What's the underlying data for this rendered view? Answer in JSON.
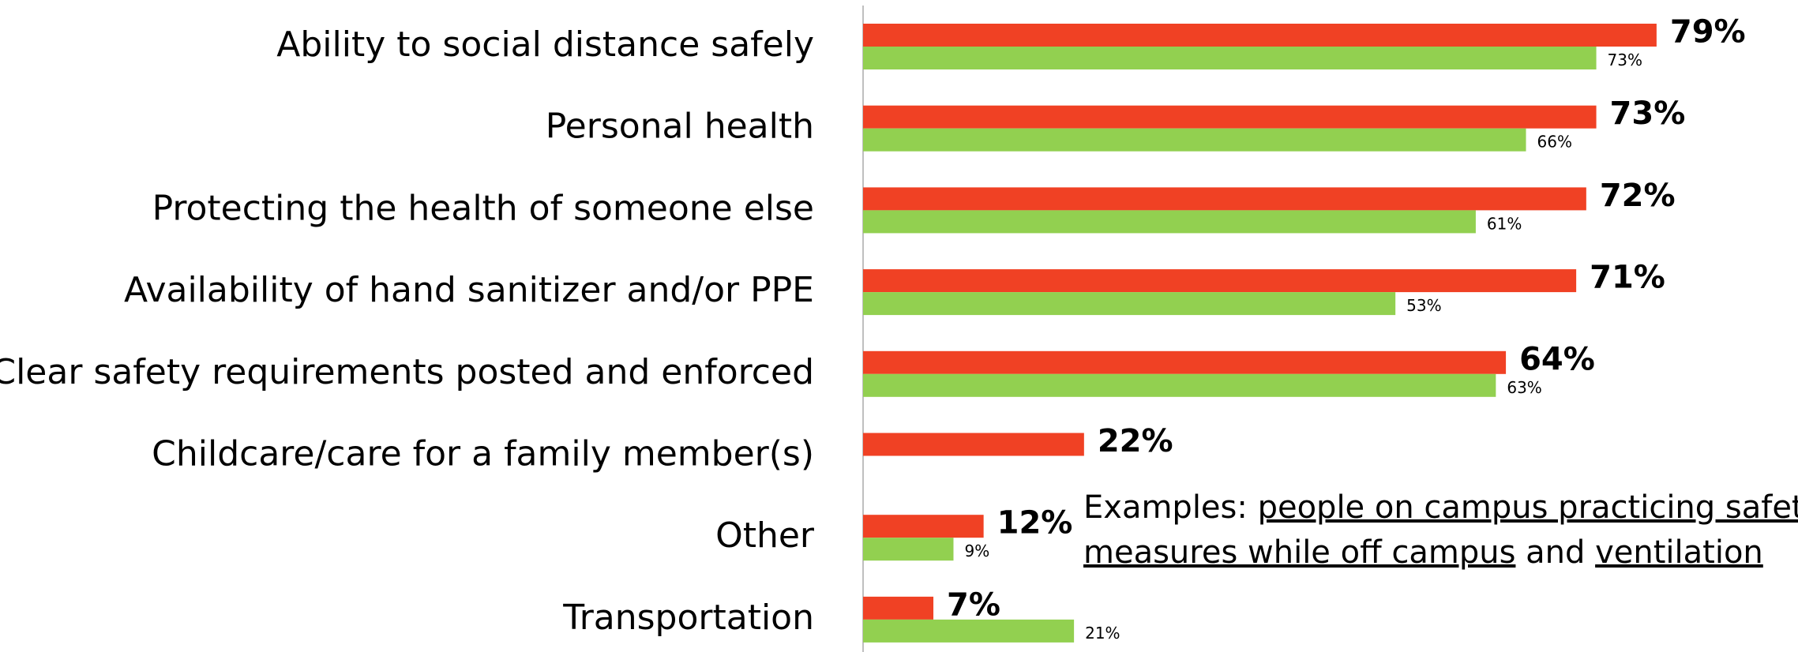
{
  "chart_data": {
    "type": "bar",
    "orientation": "horizontal",
    "categories": [
      "Ability to social distance safely",
      "Personal health",
      "Protecting the health of someone else",
      "Availability of hand sanitizer and/or PPE",
      "Clear safety requirements posted and enforced",
      "Childcare/care for a family member(s)",
      "Other",
      "Transportation"
    ],
    "series": [
      {
        "color": "#f04124",
        "values": [
          79,
          73,
          72,
          71,
          64,
          22,
          12,
          7
        ],
        "value_labels": [
          "79%",
          "73%",
          "72%",
          "71%",
          "64%",
          "22%",
          "12%",
          "7%"
        ]
      },
      {
        "color": "#92d050",
        "values": [
          73,
          66,
          61,
          53,
          63,
          null,
          9,
          21
        ],
        "value_labels": [
          "73%",
          "66%",
          "61%",
          "53%",
          "63%",
          null,
          "9%",
          "21%"
        ]
      }
    ],
    "annotation": [
      [
        {
          "text": "Examples: ",
          "underline": false
        },
        {
          "text": "people on campus practicing safety",
          "underline": true
        }
      ],
      [
        {
          "text": "measures while off campus",
          "underline": true
        },
        {
          "text": " and ",
          "underline": false
        },
        {
          "text": "ventilation",
          "underline": true
        }
      ]
    ]
  }
}
